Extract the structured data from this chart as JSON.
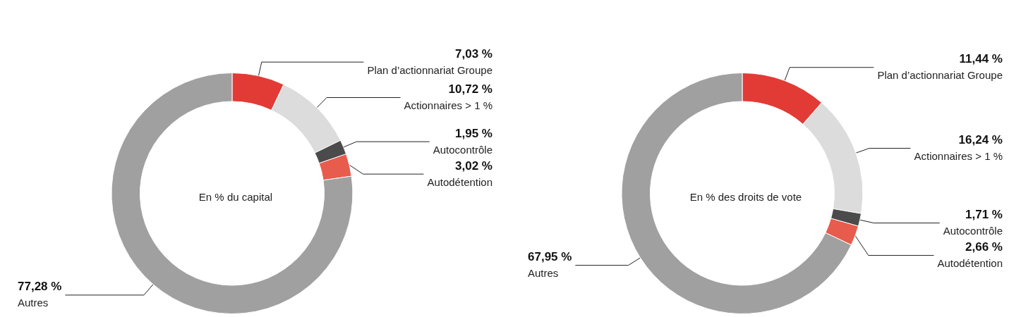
{
  "chart_data": [
    {
      "type": "donut",
      "title": "En % du capital",
      "categories": [
        "Plan d’actionnariat Groupe",
        "Actionnaires > 1 %",
        "Autocontrôle",
        "Autodétention",
        "Autres"
      ],
      "values": [
        7.03,
        10.72,
        1.95,
        3.02,
        77.28
      ],
      "value_labels": [
        "7,03 %",
        "10,72 %",
        "1,95 %",
        "3,02 %",
        "77,28 %"
      ],
      "colors": [
        "#e23b36",
        "#dcdcdc",
        "#4b4b4b",
        "#e75c4d",
        "#a0a0a0"
      ]
    },
    {
      "type": "donut",
      "title": "En % des droits de vote",
      "categories": [
        "Plan d’actionnariat Groupe",
        "Actionnaires > 1 %",
        "Autocontrôle",
        "Autodétention",
        "Autres"
      ],
      "values": [
        11.44,
        16.24,
        1.71,
        2.66,
        67.95
      ],
      "value_labels": [
        "11,44 %",
        "16,24 %",
        "1,71 %",
        "2,66 %",
        "67,95 %"
      ],
      "colors": [
        "#e23b36",
        "#dcdcdc",
        "#4b4b4b",
        "#e75c4d",
        "#a0a0a0"
      ]
    }
  ]
}
